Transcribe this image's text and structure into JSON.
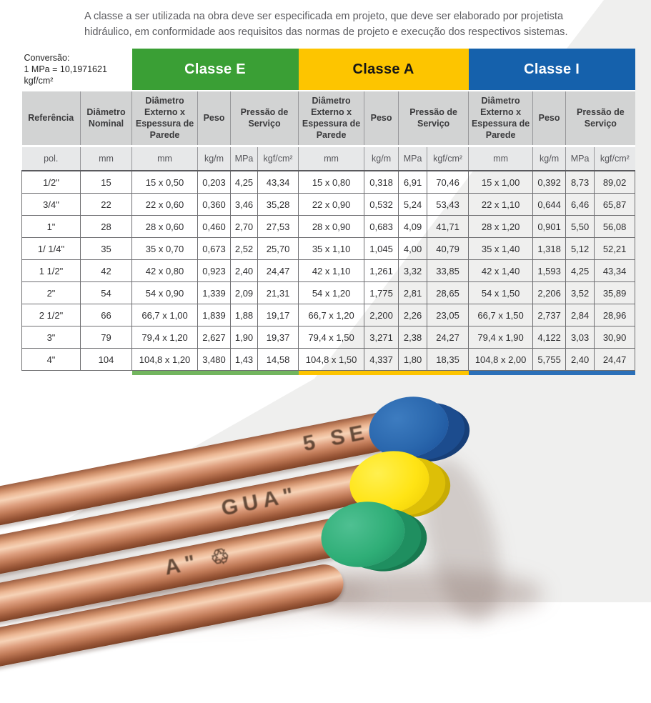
{
  "intro": {
    "text": "A classe a ser utilizada na obra deve ser especificada em projeto, que deve ser elaborado por projetista hidráulico, em conformidade aos requisitos das normas de projeto e execução dos respectivos sistemas."
  },
  "conversion": {
    "line1": "Conversão:",
    "line2": "1 MPa = 10,1971621",
    "line3": "kgf/cm²"
  },
  "table": {
    "classes": [
      {
        "label": "Classe E",
        "color": "#3a9f35",
        "text_color": "#ffffff"
      },
      {
        "label": "Classe A",
        "color": "#fdc500",
        "text_color": "#161616"
      },
      {
        "label": "Classe I",
        "color": "#1561ac",
        "text_color": "#ffffff"
      }
    ],
    "accent_colors": [
      "#72b55e",
      "#fdc400",
      "#2a6fb8"
    ],
    "col_headers": {
      "referencia": "Referência",
      "diametro_nominal": "Diâmetro Nominal",
      "diametro_externo": "Diâmetro Externo x Espessura de Parede",
      "peso": "Peso",
      "pressao": "Pressão de Serviço"
    },
    "units": {
      "pol": "pol.",
      "mm": "mm",
      "kgm": "kg/m",
      "mpa": "MPa",
      "kgfcm2": "kgf/cm²"
    },
    "rows": [
      [
        "1/2\"",
        "15",
        "15 x 0,50",
        "0,203",
        "4,25",
        "43,34",
        "15 x 0,80",
        "0,318",
        "6,91",
        "70,46",
        "15 x 1,00",
        "0,392",
        "8,73",
        "89,02"
      ],
      [
        "3/4\"",
        "22",
        "22 x 0,60",
        "0,360",
        "3,46",
        "35,28",
        "22 x 0,90",
        "0,532",
        "5,24",
        "53,43",
        "22 x 1,10",
        "0,644",
        "6,46",
        "65,87"
      ],
      [
        "1\"",
        "28",
        "28 x 0,60",
        "0,460",
        "2,70",
        "27,53",
        "28 x 0,90",
        "0,683",
        "4,09",
        "41,71",
        "28 x 1,20",
        "0,901",
        "5,50",
        "56,08"
      ],
      [
        "1/ 1/4\"",
        "35",
        "35 x 0,70",
        "0,673",
        "2,52",
        "25,70",
        "35 x 1,10",
        "1,045",
        "4,00",
        "40,79",
        "35 x 1,40",
        "1,318",
        "5,12",
        "52,21"
      ],
      [
        "1 1/2\"",
        "42",
        "42 x 0,80",
        "0,923",
        "2,40",
        "24,47",
        "42 x 1,10",
        "1,261",
        "3,32",
        "33,85",
        "42 x 1,40",
        "1,593",
        "4,25",
        "43,34"
      ],
      [
        "2\"",
        "54",
        "54 x 0,90",
        "1,339",
        "2,09",
        "21,31",
        "54 x 1,20",
        "1,775",
        "2,81",
        "28,65",
        "54 x 1,50",
        "2,206",
        "3,52",
        "35,89"
      ],
      [
        "2 1/2\"",
        "66",
        "66,7 x 1,00",
        "1,839",
        "1,88",
        "19,17",
        "66,7 x 1,20",
        "2,200",
        "2,26",
        "23,05",
        "66,7 x 1,50",
        "2,737",
        "2,84",
        "28,96"
      ],
      [
        "3\"",
        "79",
        "79,4 x 1,20",
        "2,627",
        "1,90",
        "19,37",
        "79,4 x 1,50",
        "3,271",
        "2,38",
        "24,27",
        "79,4 x 1,90",
        "4,122",
        "3,03",
        "30,90"
      ],
      [
        "4\"",
        "104",
        "104,8 x 1,20",
        "3,480",
        "1,43",
        "14,58",
        "104,8 x 1,50",
        "4,337",
        "1,80",
        "18,35",
        "104,8 x 2,00",
        "5,755",
        "2,40",
        "24,47"
      ]
    ]
  },
  "photo": {
    "pipe_markings": [
      "5  SE",
      "GUA\"",
      "A\"  ♲"
    ],
    "cap_colors": {
      "blue": "#2a67ad",
      "yellow": "#ffe415",
      "green": "#2fae77"
    },
    "copper_color": "#dfa080",
    "background_gray": "#efefee"
  }
}
